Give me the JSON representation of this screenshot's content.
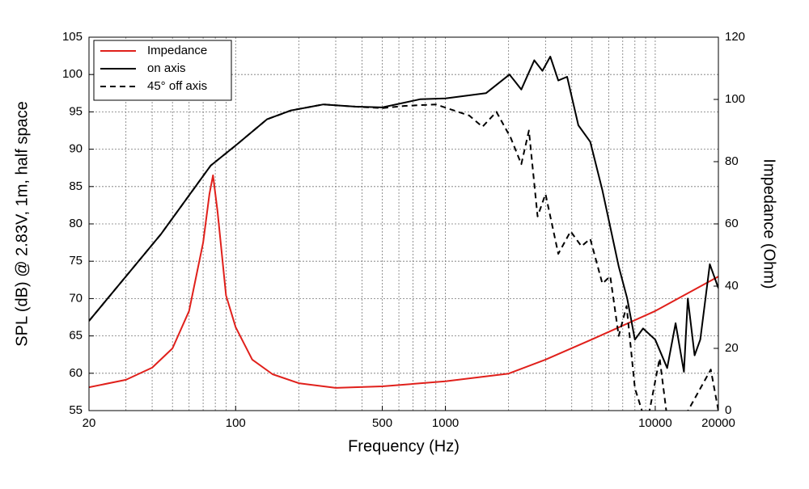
{
  "chart_data": {
    "type": "line",
    "x_label": "Frequency (Hz)",
    "y_label": "SPL (dB) @ 2.83V, 1m, half space",
    "y2_label": "Impedance (Ohm)",
    "log_x": true,
    "grid": true,
    "legend": "upper left",
    "xlim": [
      20,
      20000
    ],
    "xticks": [
      20,
      100,
      500,
      1000,
      10000,
      20000
    ],
    "xminor_ticks": [
      30,
      40,
      50,
      60,
      70,
      80,
      90,
      200,
      300,
      400,
      600,
      700,
      800,
      900,
      2000,
      3000,
      4000,
      5000,
      6000,
      7000,
      8000,
      9000
    ],
    "ylim": [
      55,
      105
    ],
    "yticks": [
      55,
      60,
      65,
      70,
      75,
      80,
      85,
      90,
      95,
      100,
      105
    ],
    "y2lim": [
      0,
      120
    ],
    "y2ticks": [
      0,
      20,
      40,
      60,
      80,
      100,
      120
    ],
    "series": [
      {
        "name": "Impedance",
        "color": "#e0201b",
        "dash": false,
        "axis": "y2",
        "x": [
          20,
          30,
          40,
          50,
          60,
          70,
          75,
          78,
          82,
          90,
          100,
          120,
          150,
          200,
          300,
          500,
          1000,
          2000,
          3000,
          5000,
          10000,
          20000
        ],
        "values": [
          7.5,
          9.9,
          13.8,
          20,
          32,
          54,
          69.6,
          75.6,
          64,
          37,
          26.8,
          16.4,
          11.7,
          8.8,
          7.3,
          7.8,
          9.4,
          11.9,
          16.4,
          22.9,
          32,
          43.1
        ]
      },
      {
        "name": "on axis",
        "color": "#000000",
        "dash": false,
        "x": [
          20,
          44,
          76,
          100,
          141,
          184,
          262,
          370,
          500,
          760,
          1000,
          1560,
          2020,
          2300,
          2650,
          2900,
          3160,
          3450,
          3800,
          4300,
          4900,
          5600,
          6700,
          7350,
          8000,
          8750,
          10000,
          11400,
          12500,
          13700,
          14300,
          15400,
          16400,
          18200,
          20000
        ],
        "values": [
          67,
          78.6,
          87.8,
          90.5,
          94,
          95.2,
          96,
          95.7,
          95.6,
          96.7,
          96.8,
          97.5,
          100,
          98,
          101.9,
          100.5,
          102.4,
          99.2,
          99.7,
          93.2,
          91,
          84.5,
          74.3,
          70,
          64.5,
          66,
          64.5,
          60.7,
          66.7,
          60.2,
          70,
          62.4,
          64.5,
          74.6,
          71.4
        ]
      },
      {
        "name": "45° off axis",
        "color": "#000000",
        "dash": true,
        "x": [
          20,
          44,
          76,
          100,
          141,
          184,
          262,
          370,
          500,
          640,
          900,
          1300,
          1500,
          1750,
          2050,
          2300,
          2500,
          2750,
          3000,
          3450,
          3950,
          4450,
          4900,
          5600,
          6100,
          6700,
          7300,
          8000,
          9100,
          10500,
          11400,
          12500,
          18400,
          20000
        ],
        "values": [
          67,
          78.6,
          87.8,
          90.5,
          94,
          95.2,
          96,
          95.7,
          95.5,
          95.8,
          96,
          94.5,
          93,
          95,
          91.5,
          88,
          92.5,
          81,
          84,
          76,
          79,
          77,
          78,
          72,
          73,
          65,
          69,
          58,
          53,
          62,
          54,
          52,
          60.5,
          55
        ]
      }
    ]
  }
}
